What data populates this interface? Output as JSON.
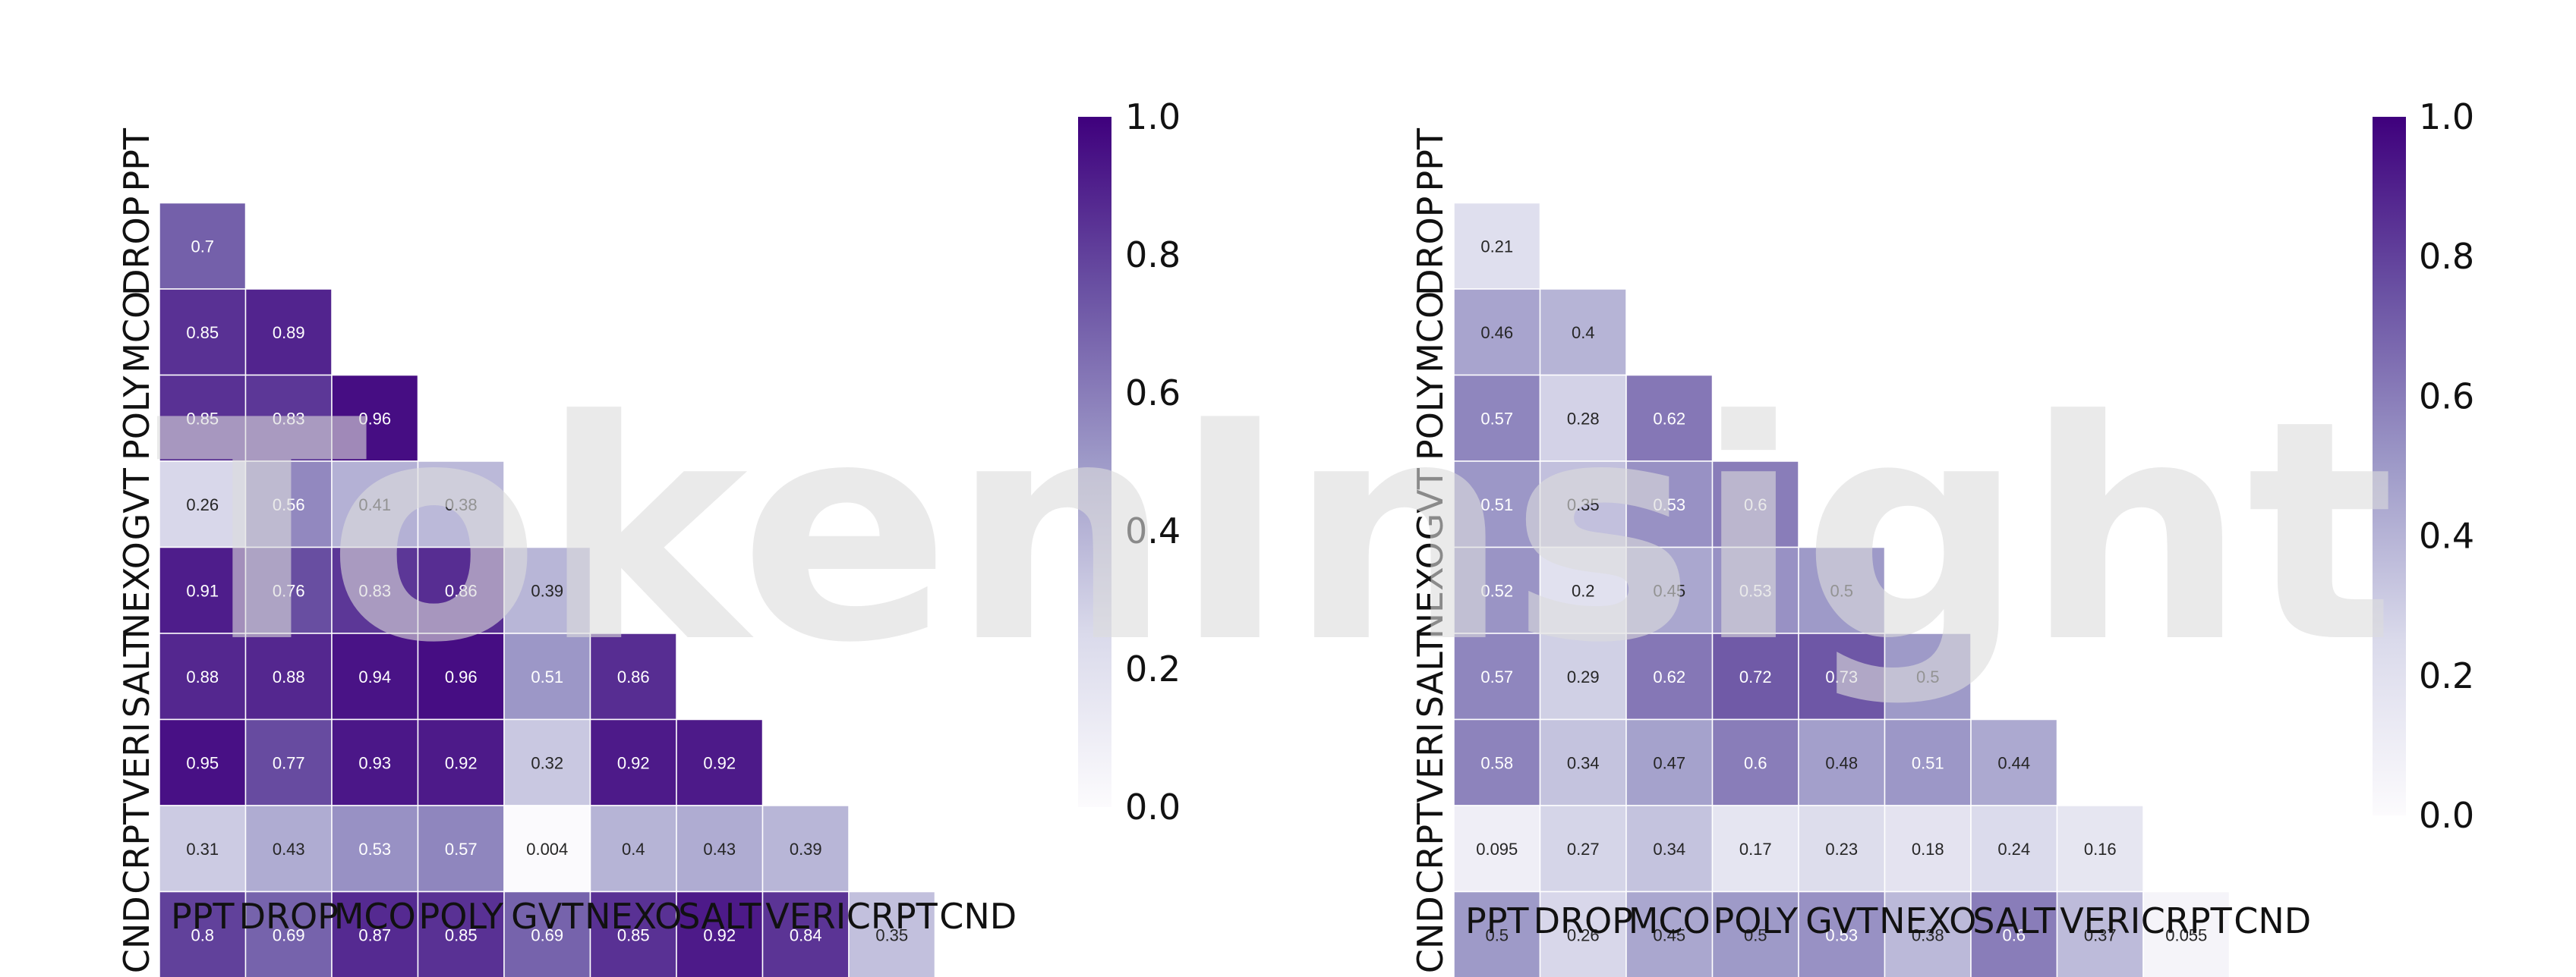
{
  "watermark": "TokenInsight",
  "chart_data": [
    {
      "type": "heatmap",
      "title": "",
      "xlabel": "",
      "ylabel": "",
      "mask": "upper-triangle-and-diagonal",
      "labels": [
        "PPT",
        "DROP",
        "MCO",
        "POLY",
        "GVT",
        "NEXO",
        "SALT",
        "VERI",
        "CRPT",
        "CND"
      ],
      "matrix": [
        [
          null,
          null,
          null,
          null,
          null,
          null,
          null,
          null,
          null,
          null
        ],
        [
          0.7,
          null,
          null,
          null,
          null,
          null,
          null,
          null,
          null,
          null
        ],
        [
          0.85,
          0.89,
          null,
          null,
          null,
          null,
          null,
          null,
          null,
          null
        ],
        [
          0.85,
          0.83,
          0.96,
          null,
          null,
          null,
          null,
          null,
          null,
          null
        ],
        [
          0.26,
          0.56,
          0.41,
          0.38,
          null,
          null,
          null,
          null,
          null,
          null
        ],
        [
          0.91,
          0.76,
          0.83,
          0.86,
          0.39,
          null,
          null,
          null,
          null,
          null
        ],
        [
          0.88,
          0.88,
          0.94,
          0.96,
          0.51,
          0.86,
          null,
          null,
          null,
          null
        ],
        [
          0.95,
          0.77,
          0.93,
          0.92,
          0.32,
          0.92,
          0.92,
          null,
          null,
          null
        ],
        [
          0.31,
          0.43,
          0.53,
          0.57,
          0.004,
          0.4,
          0.43,
          0.39,
          null,
          null
        ],
        [
          0.8,
          0.69,
          0.87,
          0.85,
          0.69,
          0.85,
          0.92,
          0.84,
          0.35,
          null
        ]
      ],
      "cell_text": [
        [
          null,
          null,
          null,
          null,
          null,
          null,
          null,
          null,
          null,
          null
        ],
        [
          "0.7",
          null,
          null,
          null,
          null,
          null,
          null,
          null,
          null,
          null
        ],
        [
          "0.85",
          "0.89",
          null,
          null,
          null,
          null,
          null,
          null,
          null,
          null
        ],
        [
          "0.85",
          "0.83",
          "0.96",
          null,
          null,
          null,
          null,
          null,
          null,
          null
        ],
        [
          "0.26",
          "0.56",
          "0.41",
          "0.38",
          null,
          null,
          null,
          null,
          null,
          null
        ],
        [
          "0.91",
          "0.76",
          "0.83",
          "0.86",
          "0.39",
          null,
          null,
          null,
          null,
          null
        ],
        [
          "0.88",
          "0.88",
          "0.94",
          "0.96",
          "0.51",
          "0.86",
          null,
          null,
          null,
          null
        ],
        [
          "0.95",
          "0.77",
          "0.93",
          "0.92",
          "0.32",
          "0.92",
          "0.92",
          null,
          null,
          null
        ],
        [
          "0.31",
          "0.43",
          "0.53",
          "0.57",
          "0.004",
          "0.4",
          "0.43",
          "0.39",
          null,
          null
        ],
        [
          "0.8",
          "0.69",
          "0.87",
          "0.85",
          "0.69",
          "0.85",
          "0.92",
          "0.84",
          "0.35",
          null
        ]
      ],
      "colorbar": {
        "range": [
          0,
          1
        ],
        "ticks": [
          "0.0",
          "0.2",
          "0.4",
          "0.6",
          "0.8",
          "1.0"
        ]
      },
      "colormap": {
        "low": "#fcfbfd",
        "mid": "#9e9ac8",
        "high": "#3f007d"
      }
    },
    {
      "type": "heatmap",
      "title": "",
      "xlabel": "",
      "ylabel": "",
      "mask": "upper-triangle-and-diagonal",
      "labels": [
        "PPT",
        "DROP",
        "MCO",
        "POLY",
        "GVT",
        "NEXO",
        "SALT",
        "VERI",
        "CRPT",
        "CND"
      ],
      "matrix": [
        [
          null,
          null,
          null,
          null,
          null,
          null,
          null,
          null,
          null,
          null
        ],
        [
          0.21,
          null,
          null,
          null,
          null,
          null,
          null,
          null,
          null,
          null
        ],
        [
          0.46,
          0.4,
          null,
          null,
          null,
          null,
          null,
          null,
          null,
          null
        ],
        [
          0.57,
          0.28,
          0.62,
          null,
          null,
          null,
          null,
          null,
          null,
          null
        ],
        [
          0.51,
          0.35,
          0.53,
          0.6,
          null,
          null,
          null,
          null,
          null,
          null
        ],
        [
          0.52,
          0.2,
          0.45,
          0.53,
          0.5,
          null,
          null,
          null,
          null,
          null
        ],
        [
          0.57,
          0.29,
          0.62,
          0.72,
          0.73,
          0.5,
          null,
          null,
          null,
          null
        ],
        [
          0.58,
          0.34,
          0.47,
          0.6,
          0.48,
          0.51,
          0.44,
          null,
          null,
          null
        ],
        [
          0.095,
          0.27,
          0.34,
          0.17,
          0.23,
          0.18,
          0.24,
          0.16,
          null,
          null
        ],
        [
          0.5,
          0.26,
          0.45,
          0.5,
          0.53,
          0.38,
          0.6,
          0.37,
          0.055,
          null
        ]
      ],
      "cell_text": [
        [
          null,
          null,
          null,
          null,
          null,
          null,
          null,
          null,
          null,
          null
        ],
        [
          "0.21",
          null,
          null,
          null,
          null,
          null,
          null,
          null,
          null,
          null
        ],
        [
          "0.46",
          "0.4",
          null,
          null,
          null,
          null,
          null,
          null,
          null,
          null
        ],
        [
          "0.57",
          "0.28",
          "0.62",
          null,
          null,
          null,
          null,
          null,
          null,
          null
        ],
        [
          "0.51",
          "0.35",
          "0.53",
          "0.6",
          null,
          null,
          null,
          null,
          null,
          null
        ],
        [
          "0.52",
          "0.2",
          "0.45",
          "0.53",
          "0.5",
          null,
          null,
          null,
          null,
          null
        ],
        [
          "0.57",
          "0.29",
          "0.62",
          "0.72",
          "0.73",
          "0.5",
          null,
          null,
          null,
          null
        ],
        [
          "0.58",
          "0.34",
          "0.47",
          "0.6",
          "0.48",
          "0.51",
          "0.44",
          null,
          null,
          null
        ],
        [
          "0.095",
          "0.27",
          "0.34",
          "0.17",
          "0.23",
          "0.18",
          "0.24",
          "0.16",
          null,
          null
        ],
        [
          "0.5",
          "0.26",
          "0.45",
          "0.5",
          "0.53",
          "0.38",
          "0.6",
          "0.37",
          "0.055",
          null
        ]
      ],
      "colorbar": {
        "range": [
          0,
          1
        ],
        "ticks": [
          "0.0",
          "0.2",
          "0.4",
          "0.6",
          "0.8",
          "1.0"
        ]
      },
      "colormap": {
        "low": "#fcfbfd",
        "mid": "#9e9ac8",
        "high": "#3f007d"
      }
    }
  ]
}
